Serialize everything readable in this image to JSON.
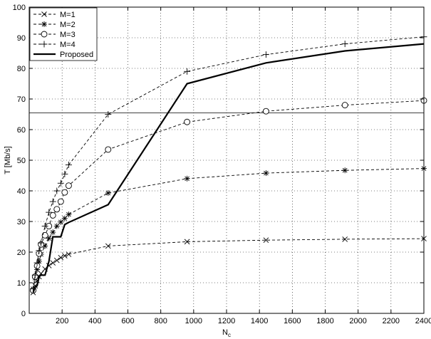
{
  "chart_data": {
    "type": "line",
    "title": "",
    "xlabel": "N",
    "xlabel_sub": "c",
    "ylabel": "T [Mb/s]",
    "xlim": [
      0,
      2400
    ],
    "ylim": [
      0,
      100
    ],
    "xticks": [
      200,
      400,
      600,
      800,
      1000,
      1200,
      1400,
      1600,
      1800,
      2000,
      2200,
      2400
    ],
    "yticks": [
      0,
      10,
      20,
      30,
      40,
      50,
      60,
      70,
      80,
      90,
      100
    ],
    "grid": true,
    "legend_position": "top-left",
    "reference_line_y": 65.5,
    "series": [
      {
        "name": "M=1",
        "marker": "x",
        "style": "dashed",
        "x": [
          24,
          36,
          48,
          60,
          72,
          96,
          120,
          144,
          168,
          192,
          216,
          240,
          480,
          960,
          1440,
          1920,
          2400
        ],
        "y": [
          6.8,
          9.0,
          10.7,
          12.0,
          13.0,
          14.5,
          15.6,
          16.5,
          17.3,
          18.2,
          18.8,
          19.3,
          22.0,
          23.4,
          23.9,
          24.2,
          24.4
        ]
      },
      {
        "name": "M=2",
        "marker": "star",
        "style": "dashed",
        "x": [
          24,
          36,
          48,
          60,
          72,
          96,
          120,
          144,
          168,
          192,
          216,
          240,
          480,
          960,
          1440,
          1920,
          2400
        ],
        "y": [
          8.0,
          11.5,
          14.3,
          17.0,
          19.3,
          22.0,
          24.5,
          26.5,
          28.5,
          29.8,
          31.0,
          32.3,
          39.3,
          44.0,
          45.8,
          46.7,
          47.3
        ]
      },
      {
        "name": "M=3",
        "marker": "circle",
        "style": "dashed",
        "x": [
          24,
          36,
          48,
          60,
          72,
          96,
          120,
          144,
          168,
          192,
          216,
          240,
          480,
          960,
          1440,
          1920,
          2400
        ],
        "y": [
          7.5,
          12.0,
          15.5,
          19.5,
          22.5,
          25.5,
          28.5,
          32.0,
          34.0,
          36.5,
          39.5,
          41.7,
          53.5,
          62.5,
          66.0,
          68.0,
          69.5
        ]
      },
      {
        "name": "M=4",
        "marker": "plus",
        "style": "dashed",
        "x": [
          24,
          36,
          48,
          60,
          72,
          96,
          120,
          144,
          168,
          192,
          216,
          240,
          480,
          960,
          1440,
          1920,
          2400
        ],
        "y": [
          8.0,
          12.5,
          16.5,
          20.5,
          23.0,
          28.5,
          33.0,
          36.5,
          40.0,
          42.5,
          45.5,
          48.5,
          65.0,
          79.0,
          84.5,
          88.0,
          90.3
        ]
      },
      {
        "name": "Proposed",
        "marker": "none",
        "style": "solid-thick",
        "x": [
          24,
          36,
          48,
          60,
          72,
          96,
          120,
          144,
          168,
          192,
          216,
          240,
          480,
          960,
          1440,
          1920,
          2400
        ],
        "y": [
          6.8,
          8.5,
          9.0,
          12.0,
          12.5,
          12.5,
          17.0,
          25.0,
          25.0,
          25.0,
          29.0,
          29.7,
          35.5,
          75.0,
          81.8,
          85.7,
          88.0
        ]
      }
    ]
  }
}
